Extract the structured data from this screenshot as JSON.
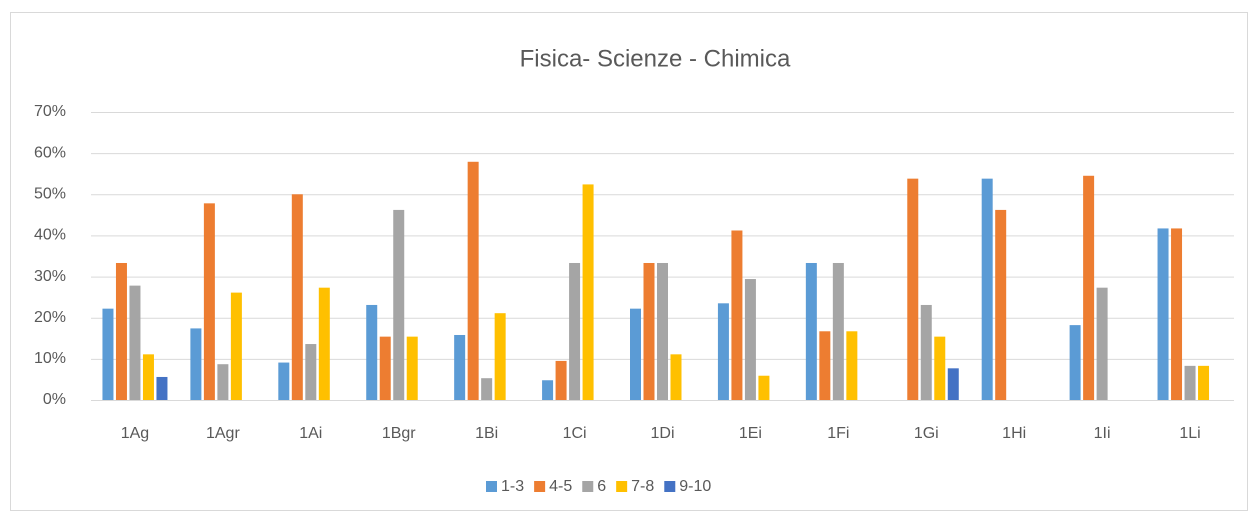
{
  "chart_data": {
    "type": "bar",
    "title": "Fisica- Scienze - Chimica",
    "categories": [
      "1Ag",
      "1Agr",
      "1Ai",
      "1Bgr",
      "1Bi",
      "1Ci",
      "1Di",
      "1Ei",
      "1Fi",
      "1Gi",
      "1Hi",
      "1Ii",
      "1Li"
    ],
    "series": [
      {
        "name": "1-3",
        "color": "#5b9bd5",
        "values": [
          22.2,
          17.4,
          9.1,
          23.1,
          15.8,
          4.8,
          22.2,
          23.5,
          33.3,
          0,
          53.8,
          18.2,
          41.7
        ]
      },
      {
        "name": "4-5",
        "color": "#ed7d31",
        "values": [
          33.3,
          47.8,
          50,
          15.4,
          57.9,
          9.5,
          33.3,
          41.2,
          16.7,
          53.8,
          46.2,
          54.5,
          41.7
        ]
      },
      {
        "name": "6",
        "color": "#a5a5a5",
        "values": [
          27.8,
          8.7,
          13.6,
          46.2,
          5.3,
          33.3,
          33.3,
          29.4,
          33.3,
          23.1,
          0,
          27.3,
          8.3
        ]
      },
      {
        "name": "7-8",
        "color": "#ffc000",
        "values": [
          11.1,
          26.1,
          27.3,
          15.4,
          21.1,
          52.4,
          11.1,
          5.9,
          16.7,
          15.4,
          0,
          0,
          8.3
        ]
      },
      {
        "name": "9-10",
        "color": "#4472c4",
        "values": [
          5.6,
          0,
          0,
          0,
          0,
          0,
          0,
          0,
          0,
          7.7,
          0,
          0,
          0
        ]
      }
    ],
    "ylim": [
      0,
      70
    ],
    "yticks": [
      {
        "value": 0,
        "label": "0%"
      },
      {
        "value": 10,
        "label": "10%"
      },
      {
        "value": 20,
        "label": "20%"
      },
      {
        "value": 30,
        "label": "30%"
      },
      {
        "value": 40,
        "label": "40%"
      },
      {
        "value": 50,
        "label": "50%"
      },
      {
        "value": 60,
        "label": "60%"
      },
      {
        "value": 70,
        "label": "70%"
      }
    ],
    "grid": true,
    "legend": "bottom"
  }
}
